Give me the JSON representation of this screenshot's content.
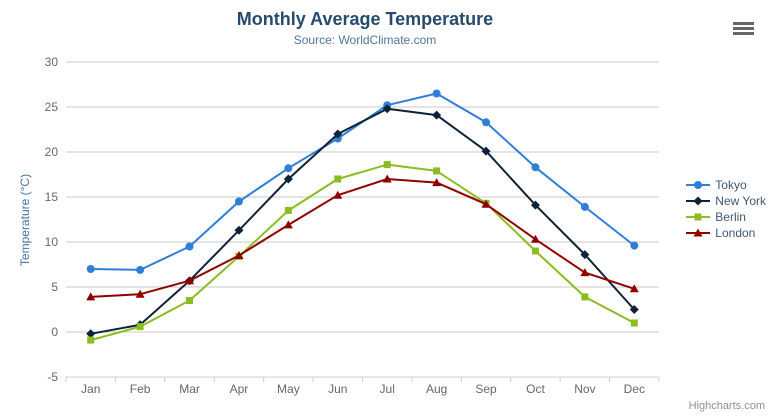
{
  "chart_data": {
    "type": "line",
    "title": "Monthly Average Temperature",
    "subtitle": "Source: WorldClimate.com",
    "xlabel": "",
    "ylabel": "Temperature (°C)",
    "ylim": [
      -5,
      30
    ],
    "ytick_interval": 5,
    "grid": true,
    "legend_position": "right",
    "categories": [
      "Jan",
      "Feb",
      "Mar",
      "Apr",
      "May",
      "Jun",
      "Jul",
      "Aug",
      "Sep",
      "Oct",
      "Nov",
      "Dec"
    ],
    "series": [
      {
        "name": "Tokyo",
        "color": "#2f7ed8",
        "marker": "circle",
        "values": [
          7.0,
          6.9,
          9.5,
          14.5,
          18.2,
          21.5,
          25.2,
          26.5,
          23.3,
          18.3,
          13.9,
          9.6
        ]
      },
      {
        "name": "New York",
        "color": "#0d233a",
        "marker": "diamond",
        "values": [
          -0.2,
          0.8,
          5.7,
          11.3,
          17.0,
          22.0,
          24.8,
          24.1,
          20.1,
          14.1,
          8.6,
          2.5
        ]
      },
      {
        "name": "Berlin",
        "color": "#8bbc21",
        "marker": "square",
        "values": [
          -0.9,
          0.6,
          3.5,
          8.4,
          13.5,
          17.0,
          18.6,
          17.9,
          14.3,
          9.0,
          3.9,
          1.0
        ]
      },
      {
        "name": "London",
        "color": "#910000",
        "marker": "triangle",
        "values": [
          3.9,
          4.2,
          5.7,
          8.5,
          11.9,
          15.2,
          17.0,
          16.6,
          14.2,
          10.3,
          6.6,
          4.8
        ]
      }
    ],
    "style": {
      "grid_color": "#c8c8c8",
      "axis_line_color": "#c0d0e0",
      "tick_color": "#c0d0e0",
      "tick_label_color": "#666666",
      "title_color": "#274b6d",
      "subtitle_color": "#4d759e",
      "yaxis_title_color": "#4572a7",
      "legend_text_color": "#3e576f"
    }
  },
  "credits": {
    "label": "Highcharts.com"
  },
  "export_menu": {
    "icon": "hamburger-menu-icon"
  }
}
